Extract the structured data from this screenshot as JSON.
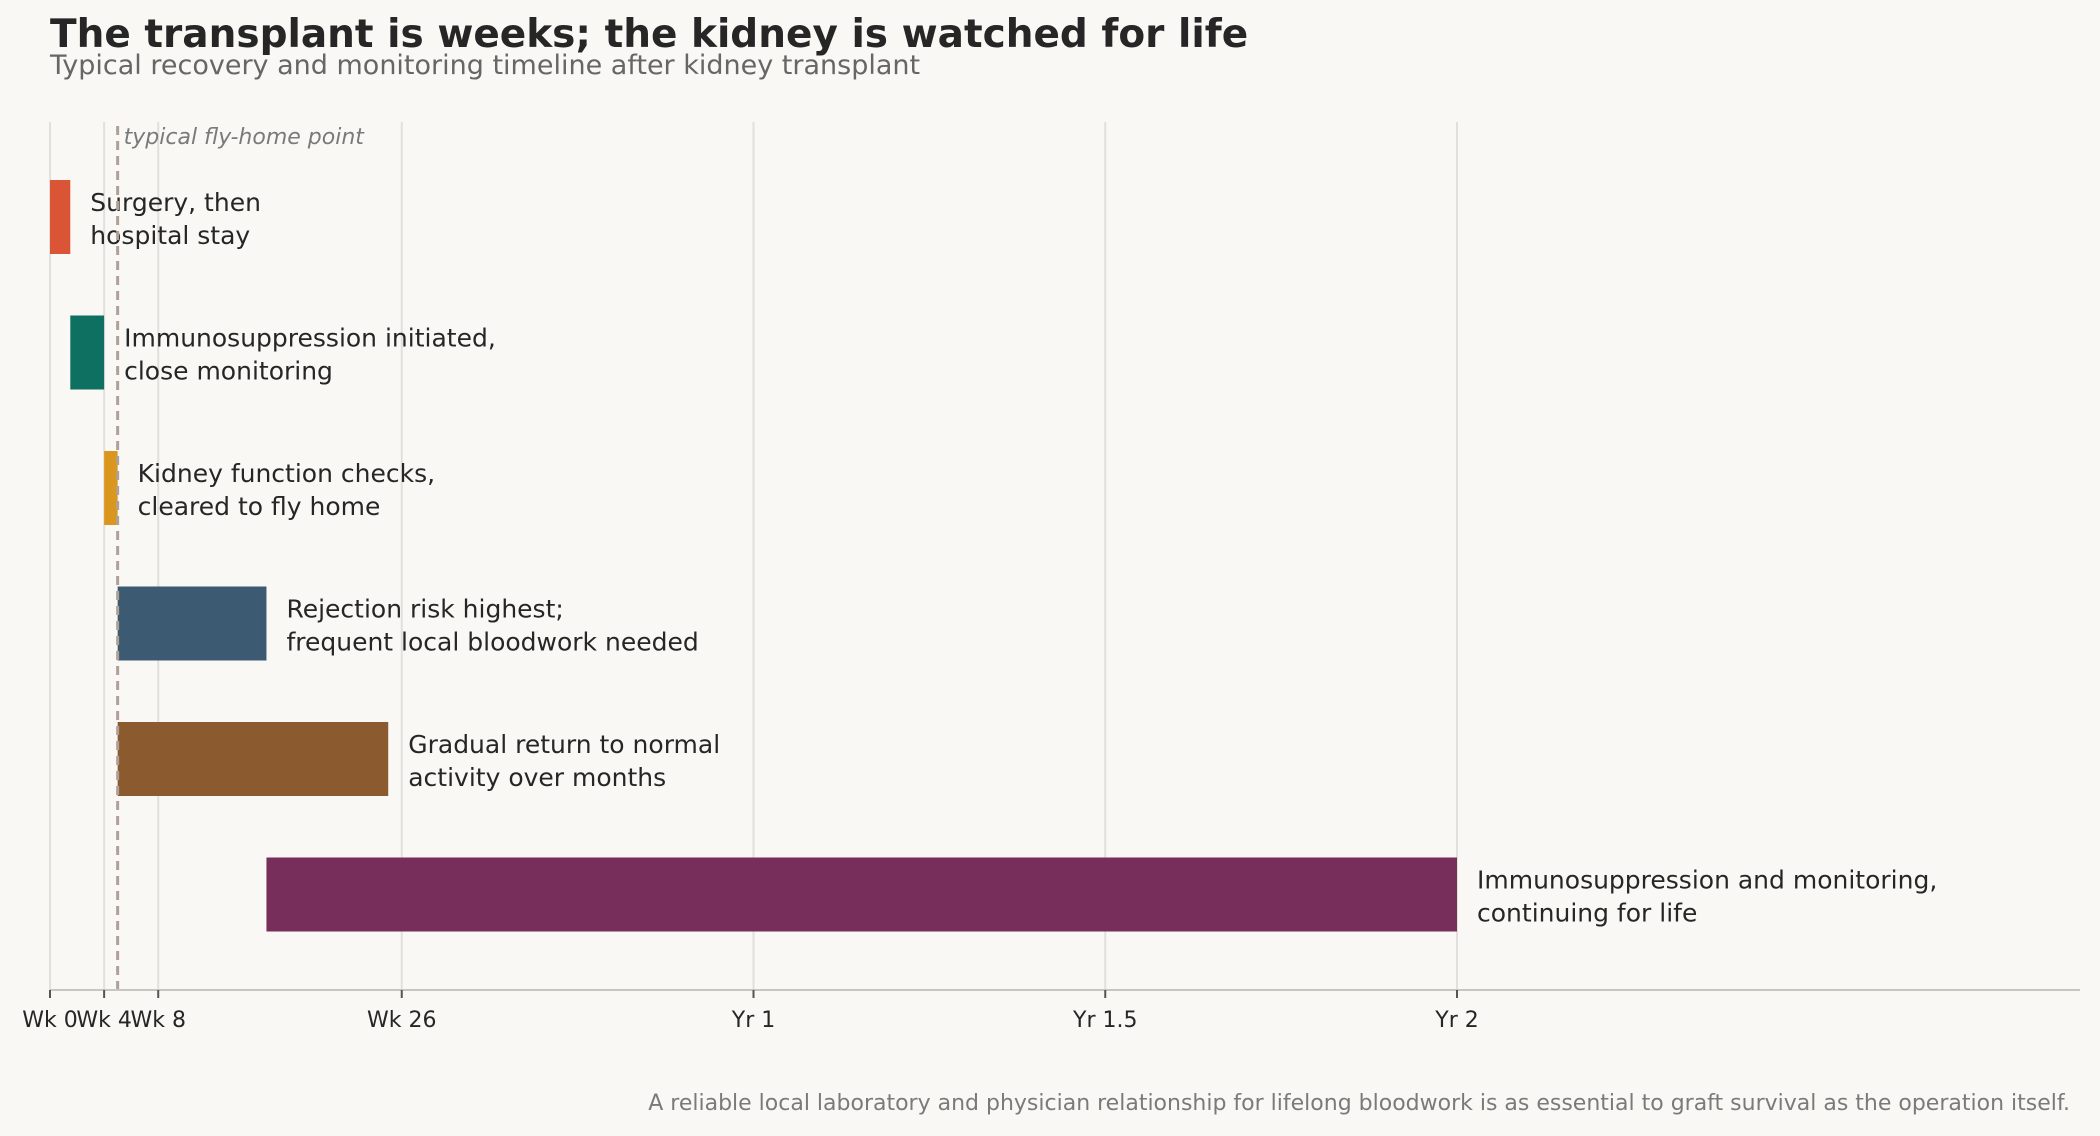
{
  "chart_data": {
    "type": "bar",
    "orientation": "horizontal-timeline",
    "title": "The transplant is weeks; the kidney is watched for life",
    "subtitle": "Typical recovery and monitoring timeline after kidney transplant",
    "footnote": "A reliable local laboratory and physician relationship for lifelong bloodwork is as essential to graft survival as the operation itself.",
    "x_unit": "weeks",
    "xlim": [
      0,
      150
    ],
    "grid": true,
    "x_ticks": [
      {
        "value": 0,
        "label": "Wk 0"
      },
      {
        "value": 4,
        "label": "Wk 4"
      },
      {
        "value": 8,
        "label": "Wk 8"
      },
      {
        "value": 26,
        "label": "Wk 26"
      },
      {
        "value": 52,
        "label": "Yr 1"
      },
      {
        "value": 78,
        "label": "Yr 1.5"
      },
      {
        "value": 104,
        "label": "Yr 2"
      }
    ],
    "phases": [
      {
        "label_lines": [
          "Surgery, then",
          "hospital stay"
        ],
        "start": 0,
        "end": 1.5,
        "color": "#d95535"
      },
      {
        "label_lines": [
          "Immunosuppression initiated,",
          "close monitoring"
        ],
        "start": 1.5,
        "end": 4,
        "color": "#0d7060"
      },
      {
        "label_lines": [
          "Kidney function checks,",
          "cleared to fly home"
        ],
        "start": 4,
        "end": 5,
        "color": "#d99720"
      },
      {
        "label_lines": [
          "Rejection risk highest;",
          "frequent local bloodwork needed"
        ],
        "start": 5,
        "end": 16,
        "color": "#3d5a73"
      },
      {
        "label_lines": [
          "Gradual return to normal",
          "activity over months"
        ],
        "start": 5,
        "end": 25,
        "color": "#8b5a2e"
      },
      {
        "label_lines": [
          "Immunosuppression and monitoring,",
          "continuing for life"
        ],
        "start": 16,
        "end": 104,
        "color": "#782e5a"
      }
    ],
    "annotations": [
      {
        "value": 5,
        "label": "typical fly-home point",
        "style": "dashed-line",
        "color": "#b0a098"
      }
    ]
  }
}
